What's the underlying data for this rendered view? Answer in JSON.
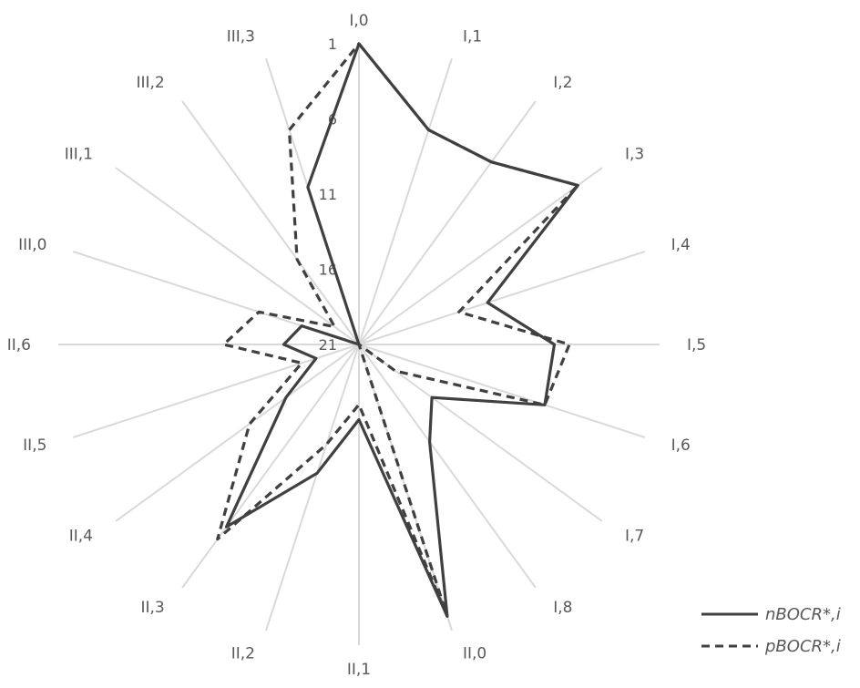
{
  "chart_data": {
    "type": "radar",
    "categories": [
      "I,0",
      "I,1",
      "I,2",
      "I,3",
      "I,4",
      "I,5",
      "I,6",
      "I,7",
      "I,8",
      "II,0",
      "II,1",
      "II,2",
      "II,3",
      "II,4",
      "II,5",
      "II,6",
      "III,0",
      "III,1",
      "III,2",
      "III,3"
    ],
    "radial_axis": {
      "min": 1,
      "max": 21,
      "reversed": true,
      "ticks": [
        1,
        6,
        11,
        16,
        21
      ]
    },
    "series": [
      {
        "name": "nBOCR*,i",
        "dash": "solid",
        "values": [
          1,
          6,
          6,
          3,
          12,
          8,
          8,
          15,
          13,
          2,
          16,
          12,
          6,
          15,
          18,
          16,
          17,
          21,
          21,
          10
        ]
      },
      {
        "name": "pBOCR*,i",
        "dash": "dashed",
        "values": [
          1,
          6,
          6,
          3,
          14,
          7,
          8,
          18,
          21,
          2,
          17,
          14,
          5,
          12,
          17,
          12,
          14,
          19,
          14,
          6
        ]
      }
    ],
    "legend_position": "bottom-right",
    "grid": false
  }
}
